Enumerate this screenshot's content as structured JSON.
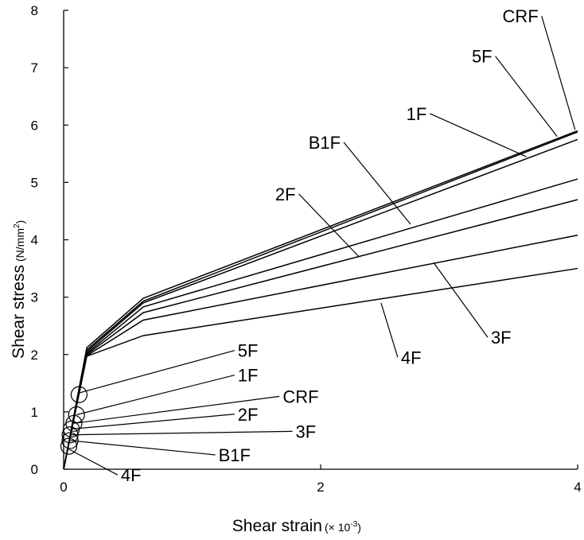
{
  "chart_data": {
    "type": "line",
    "xlabel": "Shear strain",
    "xunit": "(× 10",
    "xunit_exp": "-3",
    "xunit_close": ")",
    "ylabel": "Shear stress",
    "yunit_open": "(N/mm",
    "yunit_exp": "2",
    "yunit_close": ")",
    "xlim": [
      0,
      4
    ],
    "ylim": [
      0,
      8
    ],
    "xticks": [
      "0",
      "2",
      "4"
    ],
    "yticks": [
      "0",
      "1",
      "2",
      "3",
      "4",
      "5",
      "6",
      "7",
      "8"
    ],
    "grid": false,
    "series": [
      {
        "name": "CRF",
        "x": [
          0,
          0.18,
          0.62,
          4.0
        ],
        "y": [
          0,
          2.12,
          2.98,
          5.9
        ]
      },
      {
        "name": "5F",
        "x": [
          0,
          0.18,
          0.62,
          4.0
        ],
        "y": [
          0,
          2.08,
          2.93,
          5.88
        ]
      },
      {
        "name": "1F",
        "x": [
          0,
          0.18,
          0.62,
          4.0
        ],
        "y": [
          0,
          2.05,
          2.9,
          5.75
        ]
      },
      {
        "name": "B1F",
        "x": [
          0,
          0.18,
          0.62,
          4.0
        ],
        "y": [
          0,
          2.02,
          2.83,
          5.06
        ]
      },
      {
        "name": "2F",
        "x": [
          0,
          0.18,
          0.62,
          4.0
        ],
        "y": [
          0,
          2.0,
          2.73,
          4.7
        ]
      },
      {
        "name": "3F",
        "x": [
          0,
          0.18,
          0.62,
          4.0
        ],
        "y": [
          0,
          1.98,
          2.6,
          4.08
        ]
      },
      {
        "name": "4F",
        "x": [
          0,
          0.18,
          0.62,
          4.0
        ],
        "y": [
          0,
          1.97,
          2.33,
          3.5
        ]
      }
    ],
    "markers": [
      {
        "x": 0.12,
        "y": 1.3
      },
      {
        "x": 0.1,
        "y": 0.95
      },
      {
        "x": 0.08,
        "y": 0.8
      },
      {
        "x": 0.06,
        "y": 0.7
      },
      {
        "x": 0.05,
        "y": 0.6
      },
      {
        "x": 0.05,
        "y": 0.5
      },
      {
        "x": 0.04,
        "y": 0.4
      }
    ],
    "annotations": [
      {
        "text": "CRF",
        "label_x": 3.72,
        "label_y": 7.9,
        "point_x": 3.98,
        "point_y": 5.92
      },
      {
        "text": "5F",
        "label_x": 3.36,
        "label_y": 7.2,
        "point_x": 3.84,
        "point_y": 5.8
      },
      {
        "text": "1F",
        "label_x": 2.85,
        "label_y": 6.2,
        "point_x": 3.6,
        "point_y": 5.45
      },
      {
        "text": "B1F",
        "label_x": 2.18,
        "label_y": 5.7,
        "point_x": 2.7,
        "point_y": 4.27
      },
      {
        "text": "2F",
        "label_x": 1.83,
        "label_y": 4.8,
        "point_x": 2.3,
        "point_y": 3.7
      },
      {
        "text": "3F",
        "label_x": 3.3,
        "label_y": 2.3,
        "point_x": 2.88,
        "point_y": 3.6
      },
      {
        "text": "4F",
        "label_x": 2.6,
        "label_y": 1.95,
        "point_x": 2.47,
        "point_y": 2.9
      },
      {
        "text": "5F",
        "label_x": 1.33,
        "label_y": 2.07,
        "point_x": 0.12,
        "point_y": 1.33
      },
      {
        "text": "1F",
        "label_x": 1.33,
        "label_y": 1.64,
        "point_x": 0.1,
        "point_y": 0.95
      },
      {
        "text": "CRF",
        "label_x": 1.68,
        "label_y": 1.27,
        "point_x": 0.08,
        "point_y": 0.8
      },
      {
        "text": "2F",
        "label_x": 1.33,
        "label_y": 0.96,
        "point_x": 0.06,
        "point_y": 0.7
      },
      {
        "text": "3F",
        "label_x": 1.78,
        "label_y": 0.66,
        "point_x": 0.05,
        "point_y": 0.6
      },
      {
        "text": "B1F",
        "label_x": 1.18,
        "label_y": 0.25,
        "point_x": 0.05,
        "point_y": 0.5
      },
      {
        "text": "4F",
        "label_x": 0.42,
        "label_y": -0.1,
        "point_x": 0.04,
        "point_y": 0.35
      }
    ]
  }
}
